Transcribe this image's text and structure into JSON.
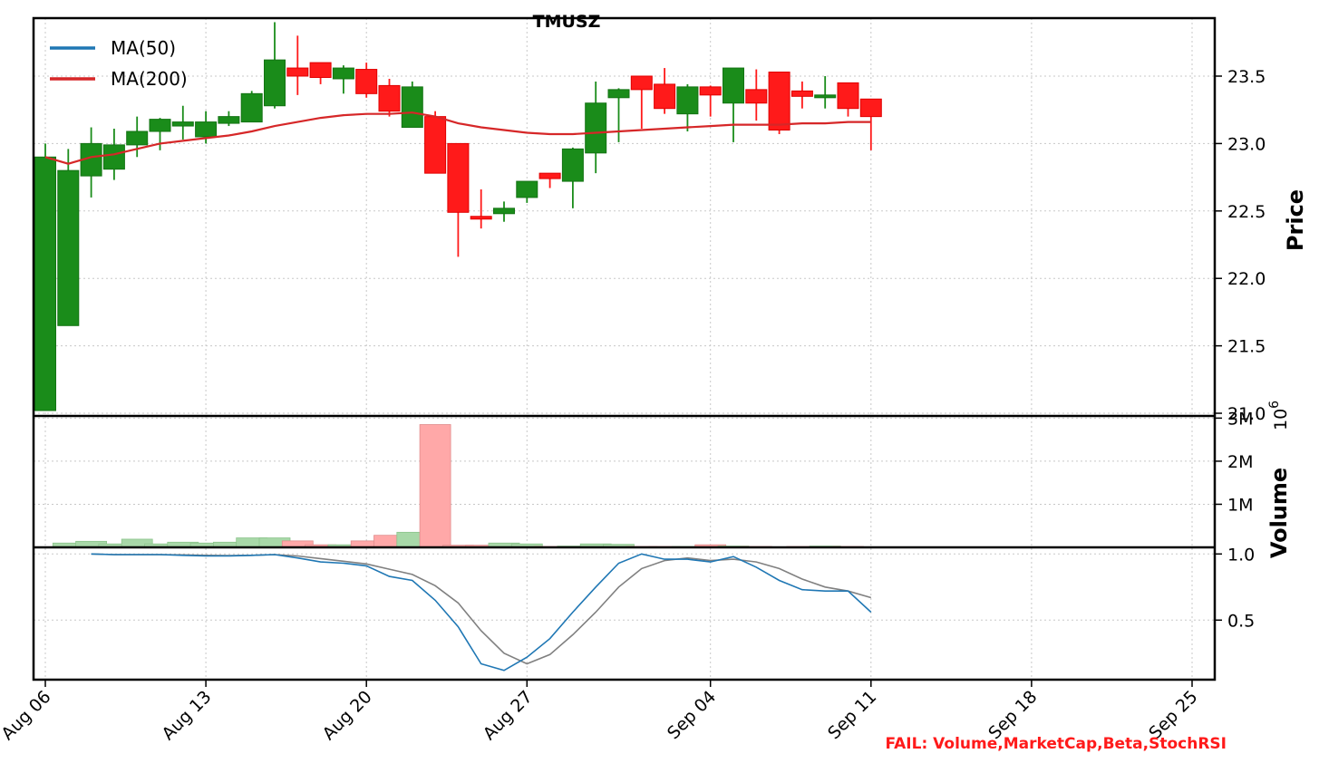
{
  "chart_data": {
    "type": "candlestick",
    "title": "TMUSZ",
    "dates": [
      "Aug 06",
      "Aug 07",
      "Aug 08",
      "Aug 09",
      "Aug 10",
      "Aug 11",
      "Aug 12",
      "Aug 13",
      "Aug 14",
      "Aug 15",
      "Aug 16",
      "Aug 17",
      "Aug 18",
      "Aug 19",
      "Aug 20",
      "Aug 21",
      "Aug 22",
      "Aug 23",
      "Aug 24",
      "Aug 25",
      "Aug 26",
      "Aug 27",
      "Aug 28",
      "Aug 29",
      "Aug 30",
      "Aug 31",
      "Sep 01",
      "Sep 02",
      "Sep 03",
      "Sep 04",
      "Sep 05",
      "Sep 06",
      "Sep 07",
      "Sep 08",
      "Sep 09",
      "Sep 10",
      "Sep 11",
      "Sep 12",
      "Sep 13",
      "Sep 14",
      "Sep 15",
      "Sep 16",
      "Sep 17",
      "Sep 18",
      "Sep 19",
      "Sep 20",
      "Sep 21",
      "Sep 22",
      "Sep 23",
      "Sep 24",
      "Sep 25",
      "Sep 26"
    ],
    "x_ticks": [
      "Aug 06",
      "Aug 13",
      "Aug 20",
      "Aug 27",
      "Sep 04",
      "Sep 11",
      "Sep 18",
      "Sep 25"
    ],
    "candles": [
      {
        "date": "Aug 06",
        "open": 21.02,
        "high": 23.0,
        "low": 21.02,
        "close": 22.9
      },
      {
        "date": "Aug 07",
        "open": 21.65,
        "high": 22.96,
        "low": 21.65,
        "close": 22.8
      },
      {
        "date": "Aug 08",
        "open": 22.76,
        "high": 23.12,
        "low": 22.6,
        "close": 23.0
      },
      {
        "date": "Aug 09",
        "open": 22.81,
        "high": 23.11,
        "low": 22.73,
        "close": 22.99
      },
      {
        "date": "Aug 10",
        "open": 22.99,
        "high": 23.2,
        "low": 22.9,
        "close": 23.09
      },
      {
        "date": "Aug 11",
        "open": 23.09,
        "high": 23.19,
        "low": 22.95,
        "close": 23.18
      },
      {
        "date": "Aug 12",
        "open": 23.13,
        "high": 23.28,
        "low": 23.03,
        "close": 23.16
      },
      {
        "date": "Aug 13",
        "open": 23.05,
        "high": 23.24,
        "low": 23.0,
        "close": 23.16
      },
      {
        "date": "Aug 14",
        "open": 23.15,
        "high": 23.24,
        "low": 23.13,
        "close": 23.2
      },
      {
        "date": "Aug 15",
        "open": 23.16,
        "high": 23.39,
        "low": 23.16,
        "close": 23.37
      },
      {
        "date": "Aug 16",
        "open": 23.28,
        "high": 23.9,
        "low": 23.26,
        "close": 23.62
      },
      {
        "date": "Aug 17",
        "open": 23.56,
        "high": 23.8,
        "low": 23.36,
        "close": 23.5
      },
      {
        "date": "Aug 18",
        "open": 23.6,
        "high": 23.6,
        "low": 23.44,
        "close": 23.49
      },
      {
        "date": "Aug 19",
        "open": 23.48,
        "high": 23.58,
        "low": 23.37,
        "close": 23.56
      },
      {
        "date": "Aug 20",
        "open": 23.55,
        "high": 23.6,
        "low": 23.34,
        "close": 23.37
      },
      {
        "date": "Aug 21",
        "open": 23.43,
        "high": 23.48,
        "low": 23.2,
        "close": 23.24
      },
      {
        "date": "Aug 22",
        "open": 23.12,
        "high": 23.46,
        "low": 23.12,
        "close": 23.42
      },
      {
        "date": "Aug 23",
        "open": 23.2,
        "high": 23.24,
        "low": 22.78,
        "close": 22.78
      },
      {
        "date": "Aug 24",
        "open": 23.0,
        "high": 23.0,
        "low": 22.16,
        "close": 22.49
      },
      {
        "date": "Aug 25",
        "open": 22.46,
        "high": 22.66,
        "low": 22.37,
        "close": 22.44
      },
      {
        "date": "Aug 26",
        "open": 22.48,
        "high": 22.57,
        "low": 22.42,
        "close": 22.52
      },
      {
        "date": "Aug 27",
        "open": 22.6,
        "high": 22.72,
        "low": 22.56,
        "close": 22.72
      },
      {
        "date": "Aug 28",
        "open": 22.78,
        "high": 22.78,
        "low": 22.67,
        "close": 22.74
      },
      {
        "date": "Aug 29",
        "open": 22.72,
        "high": 22.97,
        "low": 22.52,
        "close": 22.96
      },
      {
        "date": "Aug 30",
        "open": 22.93,
        "high": 23.46,
        "low": 22.78,
        "close": 23.3
      },
      {
        "date": "Aug 31",
        "open": 23.34,
        "high": 23.41,
        "low": 23.01,
        "close": 23.4
      },
      {
        "date": "Sep 01",
        "open": 23.5,
        "high": 23.5,
        "low": 23.11,
        "close": 23.4
      },
      {
        "date": "Sep 02",
        "open": 23.44,
        "high": 23.56,
        "low": 23.22,
        "close": 23.26
      },
      {
        "date": "Sep 03",
        "open": 23.22,
        "high": 23.44,
        "low": 23.09,
        "close": 23.42
      },
      {
        "date": "Sep 04",
        "open": 23.42,
        "high": 23.43,
        "low": 23.2,
        "close": 23.36
      },
      {
        "date": "Sep 05",
        "open": 23.3,
        "high": 23.56,
        "low": 23.01,
        "close": 23.56
      },
      {
        "date": "Sep 06",
        "open": 23.4,
        "high": 23.55,
        "low": 23.17,
        "close": 23.3
      },
      {
        "date": "Sep 07",
        "open": 23.53,
        "high": 23.53,
        "low": 23.07,
        "close": 23.1
      },
      {
        "date": "Sep 08",
        "open": 23.39,
        "high": 23.46,
        "low": 23.26,
        "close": 23.35
      },
      {
        "date": "Sep 09",
        "open": 23.35,
        "high": 23.5,
        "low": 23.26,
        "close": 23.36
      },
      {
        "date": "Sep 10",
        "open": 23.45,
        "high": 23.45,
        "low": 23.2,
        "close": 23.26
      },
      {
        "date": "Sep 11",
        "open": 23.33,
        "high": 23.33,
        "low": 22.95,
        "close": 23.2
      }
    ],
    "moving_averages": [
      {
        "name": "MA(50)",
        "color": "#1f77b4",
        "values": []
      },
      {
        "name": "MA(200)",
        "color": "#d62728",
        "values": [
          22.9,
          22.85,
          22.9,
          22.92,
          22.96,
          23.0,
          23.02,
          23.04,
          23.06,
          23.09,
          23.13,
          23.16,
          23.19,
          23.21,
          23.22,
          23.22,
          23.23,
          23.2,
          23.15,
          23.12,
          23.1,
          23.08,
          23.07,
          23.07,
          23.08,
          23.09,
          23.1,
          23.11,
          23.12,
          23.13,
          23.14,
          23.14,
          23.14,
          23.15,
          23.15,
          23.16,
          23.16
        ]
      }
    ],
    "price_axis": {
      "label": "Price",
      "ticks": [
        21.0,
        21.5,
        22.0,
        22.5,
        23.0,
        23.5
      ],
      "ylim": [
        20.98,
        23.93
      ]
    },
    "volume": {
      "label": "Volume",
      "exponent": "1e6",
      "ticks": [
        "1M",
        "2M",
        "3M"
      ],
      "ylim": [
        0,
        3.05
      ],
      "values": [
        0.0,
        0.1,
        0.14,
        0.08,
        0.19,
        0.08,
        0.12,
        0.1,
        0.12,
        0.22,
        0.22,
        0.15,
        0.06,
        0.06,
        0.15,
        0.28,
        0.35,
        2.85,
        0.05,
        0.05,
        0.1,
        0.08,
        0.02,
        0.03,
        0.08,
        0.07,
        0.02,
        0.02,
        0.02,
        0.06,
        0.03,
        0.02,
        0.0,
        0.02,
        0.03,
        0.02,
        0.0
      ]
    },
    "stoch_rsi": {
      "ticks": [
        0.5,
        1.0
      ],
      "ylim": [
        0.05,
        1.05
      ],
      "k": [
        null,
        null,
        1.0,
        0.995,
        0.995,
        0.995,
        0.99,
        0.985,
        0.985,
        0.99,
        0.995,
        0.97,
        0.94,
        0.93,
        0.91,
        0.83,
        0.8,
        0.65,
        0.45,
        0.17,
        0.12,
        0.22,
        0.36,
        0.56,
        0.75,
        0.93,
        1.0,
        0.96,
        0.96,
        0.94,
        0.98,
        0.9,
        0.8,
        0.73,
        0.72,
        0.72,
        0.56
      ],
      "d": [
        null,
        null,
        1.0,
        0.995,
        0.995,
        0.995,
        0.993,
        0.99,
        0.988,
        0.99,
        0.995,
        0.985,
        0.965,
        0.945,
        0.925,
        0.885,
        0.845,
        0.76,
        0.63,
        0.42,
        0.25,
        0.17,
        0.24,
        0.39,
        0.56,
        0.75,
        0.89,
        0.95,
        0.97,
        0.95,
        0.96,
        0.94,
        0.89,
        0.81,
        0.75,
        0.72,
        0.67
      ]
    },
    "legend": {
      "placement": "top-left",
      "entries": [
        "MA(50)",
        "MA(200)"
      ]
    },
    "grid": true,
    "colors": {
      "up": "#1a8c1a",
      "down": "#ff1a1a",
      "vol_up": "#a8d8a8",
      "vol_down": "#ffa8a8",
      "k_line": "#1f77b4",
      "d_line": "#808080"
    }
  },
  "status": {
    "fail_text": "FAIL: Volume,MarketCap,Beta,StochRSI",
    "color": "#ff1a1a"
  }
}
